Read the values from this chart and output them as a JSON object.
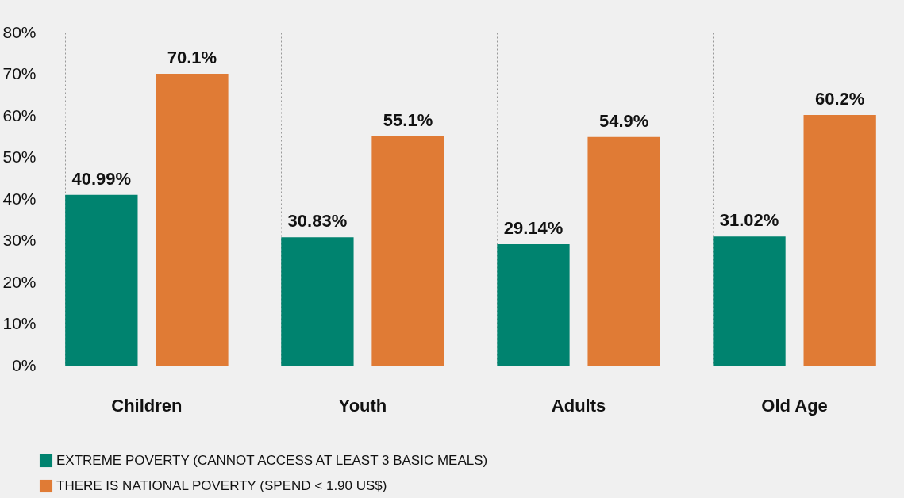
{
  "chart_data": {
    "type": "bar",
    "categories": [
      "Children",
      "Youth",
      "Adults",
      "Old Age"
    ],
    "series": [
      {
        "name": "EXTREME POVERTY (CANNOT ACCESS AT LEAST 3 BASIC MEALS)",
        "color": "#00836f",
        "values": [
          40.99,
          30.83,
          29.14,
          31.02
        ],
        "value_labels": [
          "40.99%",
          "30.83%",
          "29.14%",
          "31.02%"
        ]
      },
      {
        "name": "THERE IS NATIONAL POVERTY (SPEND < 1.90 US$)",
        "color": "#e07b35",
        "values": [
          70.1,
          55.1,
          54.9,
          60.2
        ],
        "value_labels": [
          "70.1%",
          "55.1%",
          "54.9%",
          "60.2%"
        ]
      }
    ],
    "ylim": [
      0,
      80
    ],
    "yticks": [
      {
        "value": 0,
        "label": "0%"
      },
      {
        "value": 10,
        "label": "10%"
      },
      {
        "value": 20,
        "label": "20%"
      },
      {
        "value": 30,
        "label": "30%"
      },
      {
        "value": 40,
        "label": "40%"
      },
      {
        "value": 50,
        "label": "50%"
      },
      {
        "value": 60,
        "label": "60%"
      },
      {
        "value": 70,
        "label": "70%"
      },
      {
        "value": 80,
        "label": "80%"
      }
    ],
    "grid": "x",
    "legend": "bottom"
  }
}
